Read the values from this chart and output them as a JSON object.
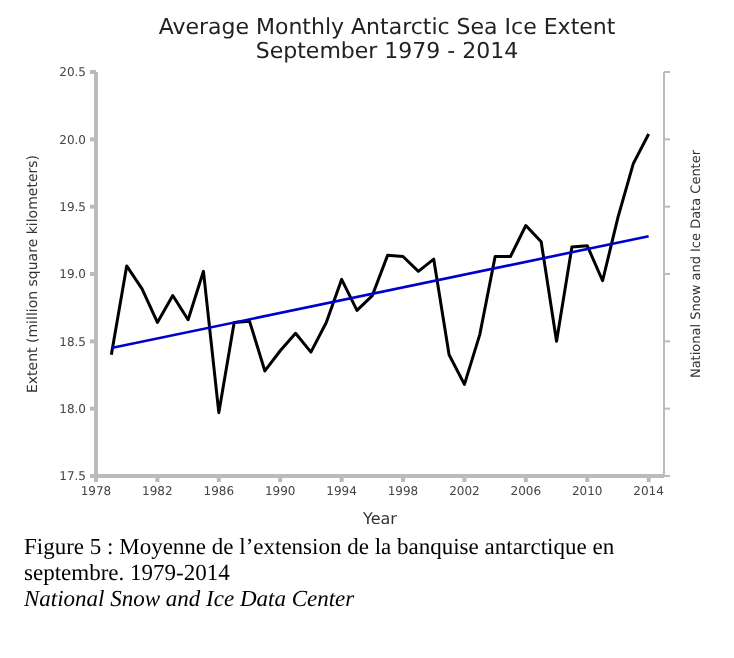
{
  "chart_data": {
    "type": "line",
    "title": "Average Monthly Antarctic Sea Ice Extent",
    "subtitle": "September 1979 - 2014",
    "xlabel": "Year",
    "ylabel": "Extent (million square kilometers)",
    "x": [
      1979,
      1980,
      1981,
      1982,
      1983,
      1984,
      1985,
      1986,
      1987,
      1988,
      1989,
      1990,
      1991,
      1992,
      1993,
      1994,
      1995,
      1996,
      1997,
      1998,
      1999,
      2000,
      2001,
      2002,
      2003,
      2004,
      2005,
      2006,
      2007,
      2008,
      2009,
      2010,
      2011,
      2012,
      2013,
      2014
    ],
    "series": [
      {
        "color": "#000000",
        "values": [
          18.4,
          19.06,
          18.89,
          18.64,
          18.84,
          18.66,
          19.02,
          17.97,
          18.64,
          18.65,
          18.28,
          18.43,
          18.56,
          18.42,
          18.64,
          18.96,
          18.73,
          18.84,
          19.14,
          19.13,
          19.02,
          19.11,
          18.4,
          18.18,
          18.55,
          19.13,
          19.13,
          19.36,
          19.24,
          18.5,
          19.2,
          19.21,
          18.95,
          19.42,
          19.82,
          20.04
        ]
      },
      {
        "type": "line",
        "color": "#0000cc",
        "x": [
          1979,
          2014
        ],
        "values": [
          18.45,
          19.28
        ]
      }
    ],
    "xlim": [
      1978,
      2015
    ],
    "xticks": [
      1978,
      1982,
      1986,
      1990,
      1994,
      1998,
      2002,
      2006,
      2010,
      2014
    ],
    "ylim": [
      17.5,
      20.5
    ],
    "yticks": [
      17.5,
      {
        "value": 18,
        "label": "18.0"
      },
      18.5,
      {
        "value": 19,
        "label": "19.0"
      },
      19.5,
      {
        "value": 20,
        "label": "20.0"
      },
      20.5
    ],
    "grid": false,
    "legend": false,
    "marker": "none",
    "line_style": "solid",
    "annotations": [
      "National Snow and Ice Data Center",
      "Figure 5 : Moyenne de l’extension de la banquise antarctique en   septembre. 1979-2014",
      "National Snow and Ice Data Center"
    ]
  }
}
